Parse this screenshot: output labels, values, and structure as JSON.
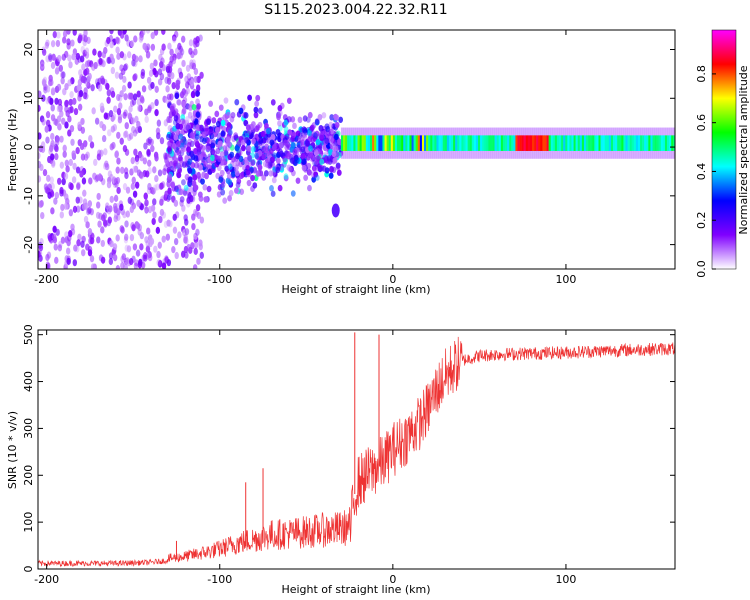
{
  "figure": {
    "title": "S115.2023.004.22.32.R11"
  },
  "colorbar": {
    "label": "Normalized spectral amplitude",
    "ticks": [
      "0.0",
      "0.2",
      "0.4",
      "0.6",
      "0.8"
    ],
    "tick_values": [
      0.0,
      0.2,
      0.4,
      0.6,
      0.8
    ],
    "range": [
      0,
      0.98
    ],
    "colormap": [
      "#ffffff",
      "#8000ff",
      "#0000ff",
      "#00ffff",
      "#00ff00",
      "#ffff00",
      "#ff0000",
      "#ff00ff"
    ]
  },
  "chart_data": [
    {
      "type": "heatmap",
      "title": "S115.2023.004.22.32.R11",
      "xlabel": "Height of straight line (km)",
      "ylabel": "Frequency (Hz)",
      "xlim": [
        -205,
        163
      ],
      "ylim": [
        -25,
        24
      ],
      "xticks": [
        -200,
        -100,
        0,
        100
      ],
      "yticks": [
        -20,
        -10,
        0,
        10,
        20
      ],
      "grid": false,
      "description_points": {
        "noise_region_x": [
          -205,
          -120
        ],
        "scattered_region_x": [
          -130,
          -30
        ],
        "line_region_x": [
          -30,
          163
        ],
        "line_frequency_hz": 0.8,
        "peak_amplitude_x": [
          70,
          90
        ],
        "low_feature": {
          "x": -33,
          "y": -13
        }
      }
    },
    {
      "type": "line",
      "title": "",
      "xlabel": "Height of straight line (km)",
      "ylabel": "SNR (10 * v/v)",
      "xlim": [
        -205,
        163
      ],
      "ylim": [
        0,
        510
      ],
      "xticks": [
        -200,
        -100,
        0,
        100
      ],
      "yticks": [
        0,
        100,
        200,
        300,
        400,
        500
      ],
      "grid": false,
      "color": "#ee3333",
      "series": [
        {
          "x": [
            -205,
            -180,
            -160,
            -140,
            -130,
            -120,
            -110,
            -100,
            -90,
            -80,
            -70,
            -60,
            -50,
            -40,
            -30,
            -25,
            -22,
            -20,
            -15,
            -10,
            -5,
            0,
            5,
            10,
            15,
            20,
            25,
            30,
            35,
            40,
            50,
            60,
            80,
            100,
            120,
            140,
            163
          ],
          "values": [
            12,
            12,
            12,
            14,
            18,
            22,
            28,
            35,
            45,
            52,
            60,
            62,
            65,
            68,
            70,
            75,
            160,
            185,
            200,
            215,
            230,
            255,
            270,
            290,
            310,
            340,
            380,
            410,
            430,
            445,
            455,
            458,
            460,
            462,
            465,
            468,
            470
          ]
        }
      ],
      "spikes": [
        {
          "x": -22,
          "y": 505
        },
        {
          "x": -8,
          "y": 500
        },
        {
          "x": -85,
          "y": 185
        },
        {
          "x": -75,
          "y": 215
        },
        {
          "x": -125,
          "y": 60
        }
      ]
    }
  ]
}
